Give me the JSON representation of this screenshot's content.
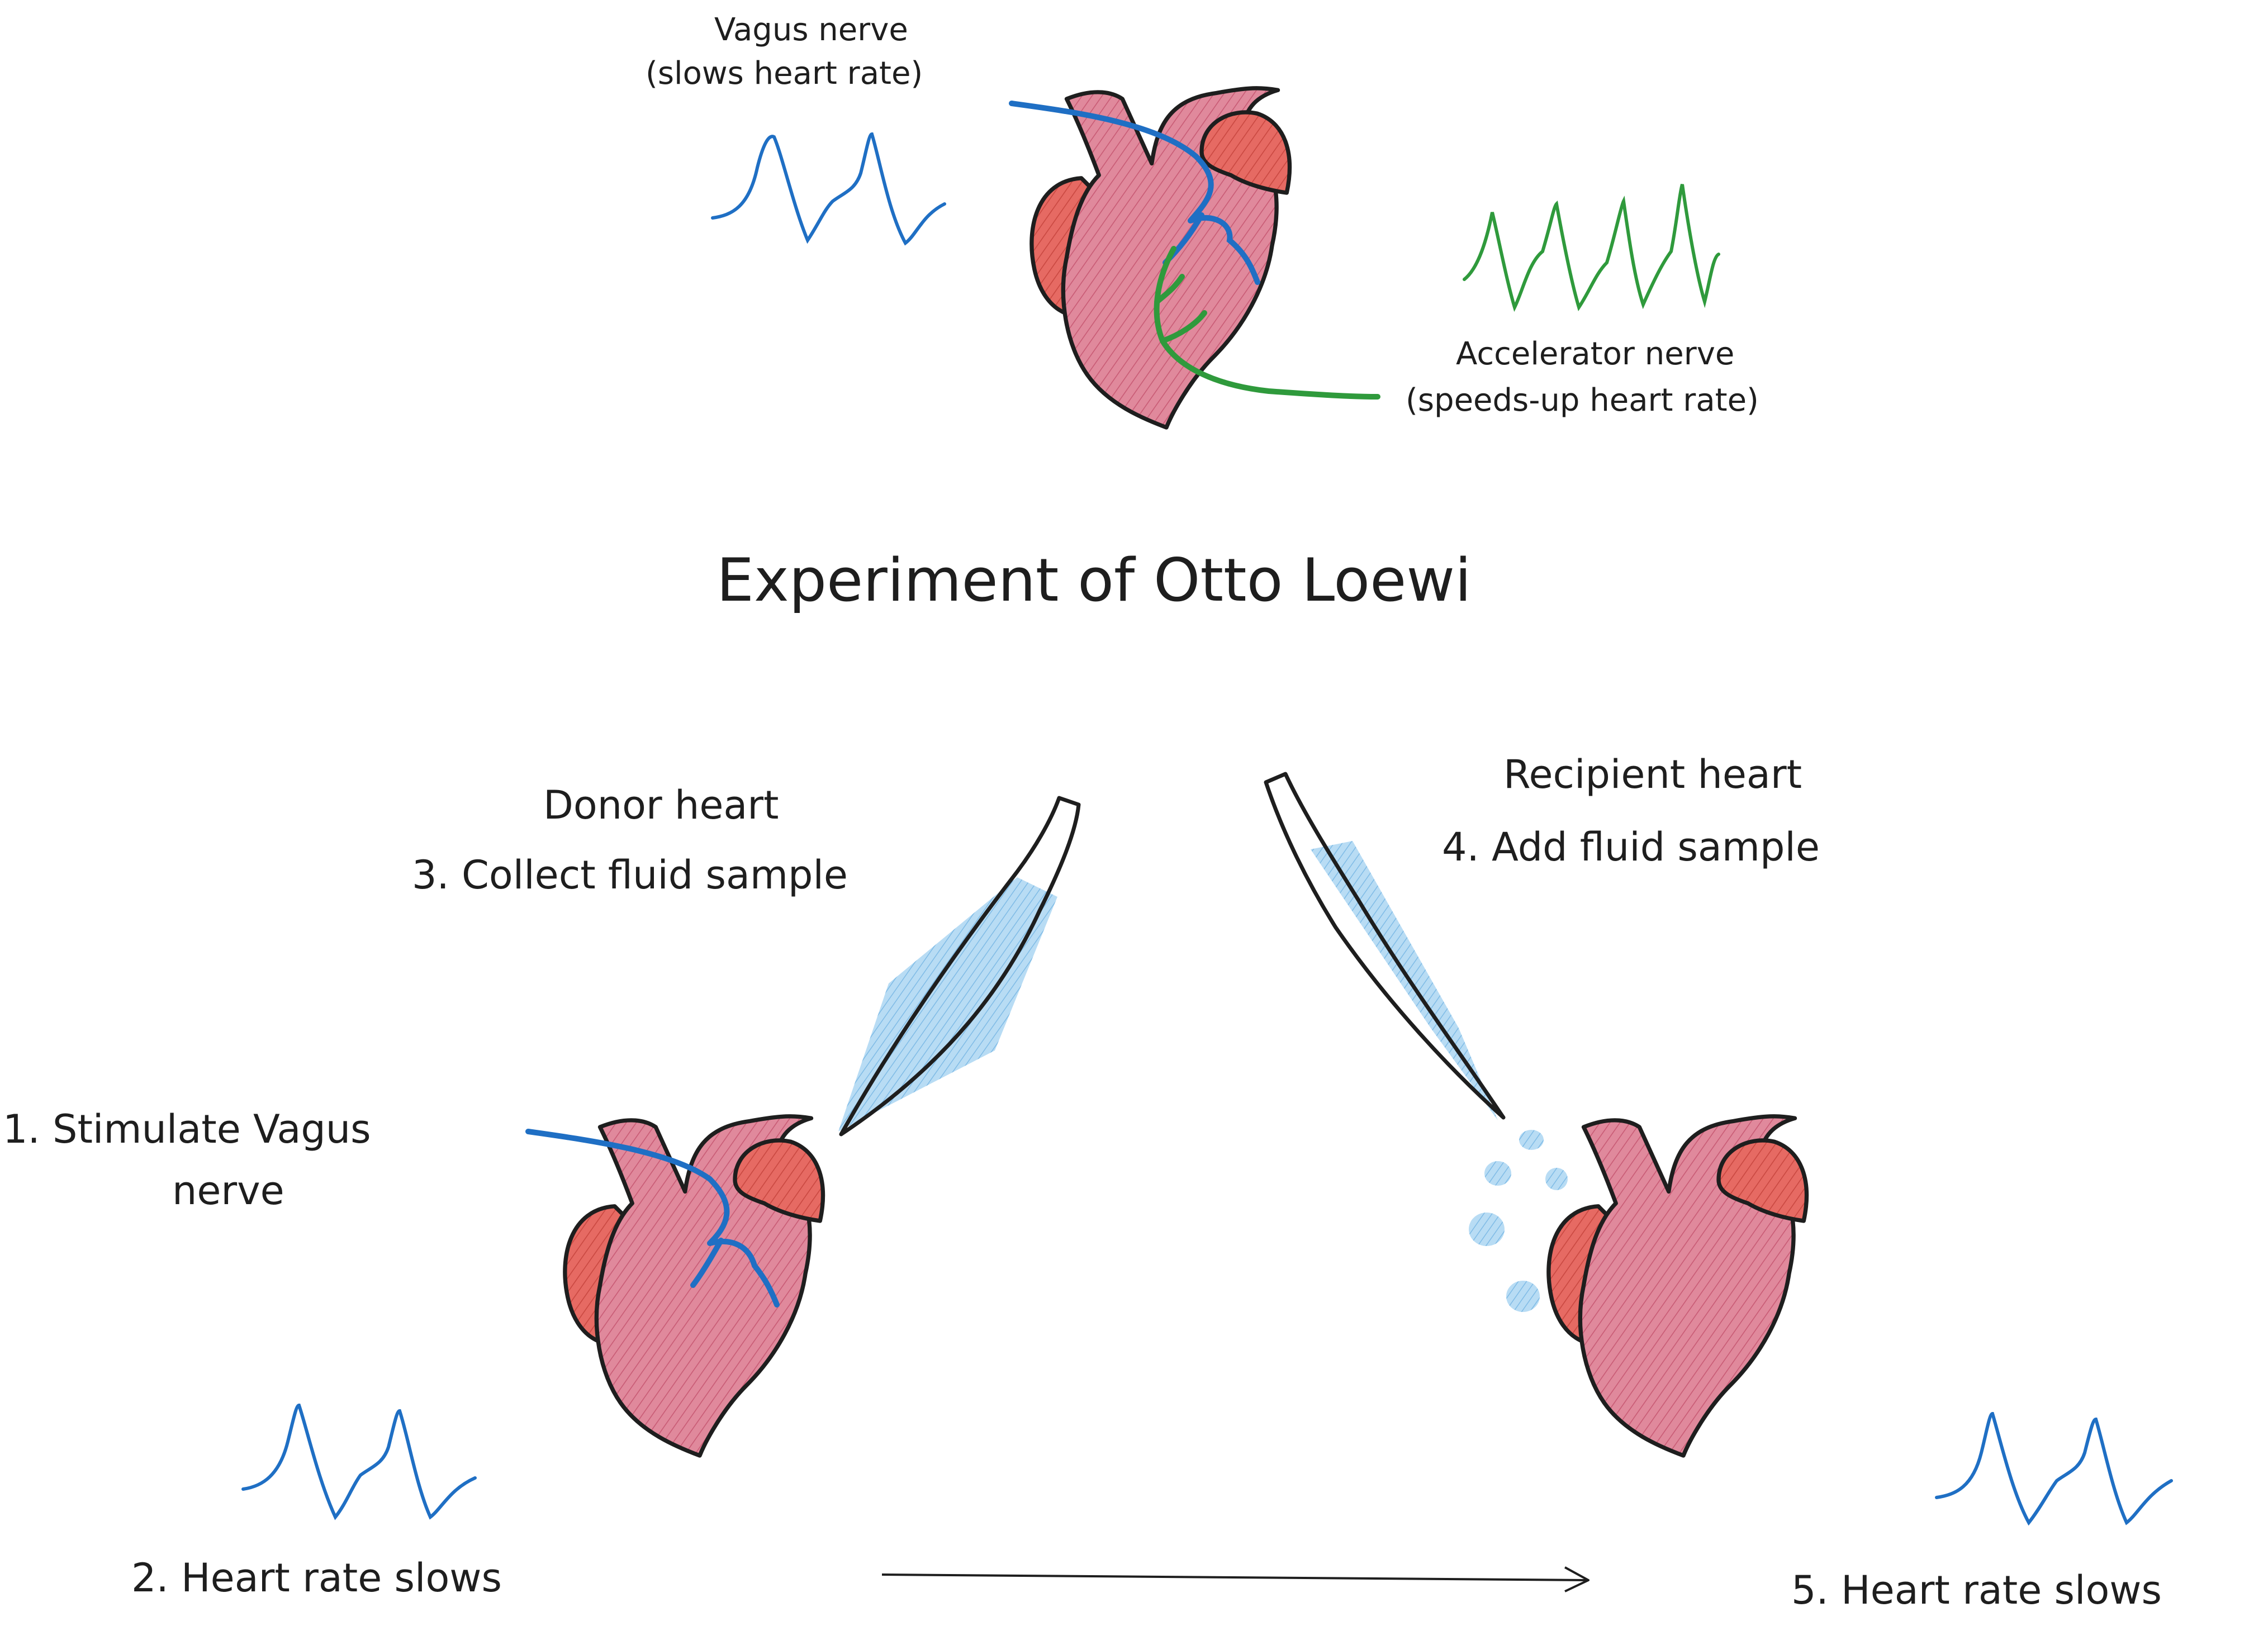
{
  "title": "Experiment of Otto Loewi",
  "top": {
    "vagus_label_line1": "Vagus nerve",
    "vagus_label_line2": "(slows heart rate)",
    "accelerator_label_line1": "Accelerator nerve",
    "accelerator_label_line2": "(speeds-up heart rate)"
  },
  "steps": {
    "step1_line1": "1. Stimulate Vagus",
    "step1_line2": "nerve",
    "step2": "2. Heart rate slows",
    "step3_line1": "Donor heart",
    "step3_line2": "3. Collect fluid sample",
    "step4_line1": "Recipient heart",
    "step4_line2": "4. Add fluid sample",
    "step5": "5. Heart rate slows"
  },
  "colors": {
    "heart_fill": "#e0899c",
    "atrium_fill": "#e66a63",
    "vagus_nerve": "#1f6fc4",
    "accelerator_nerve": "#2f9a3c",
    "fluid": "#a8d4f0",
    "ink": "#1e1e1e"
  }
}
